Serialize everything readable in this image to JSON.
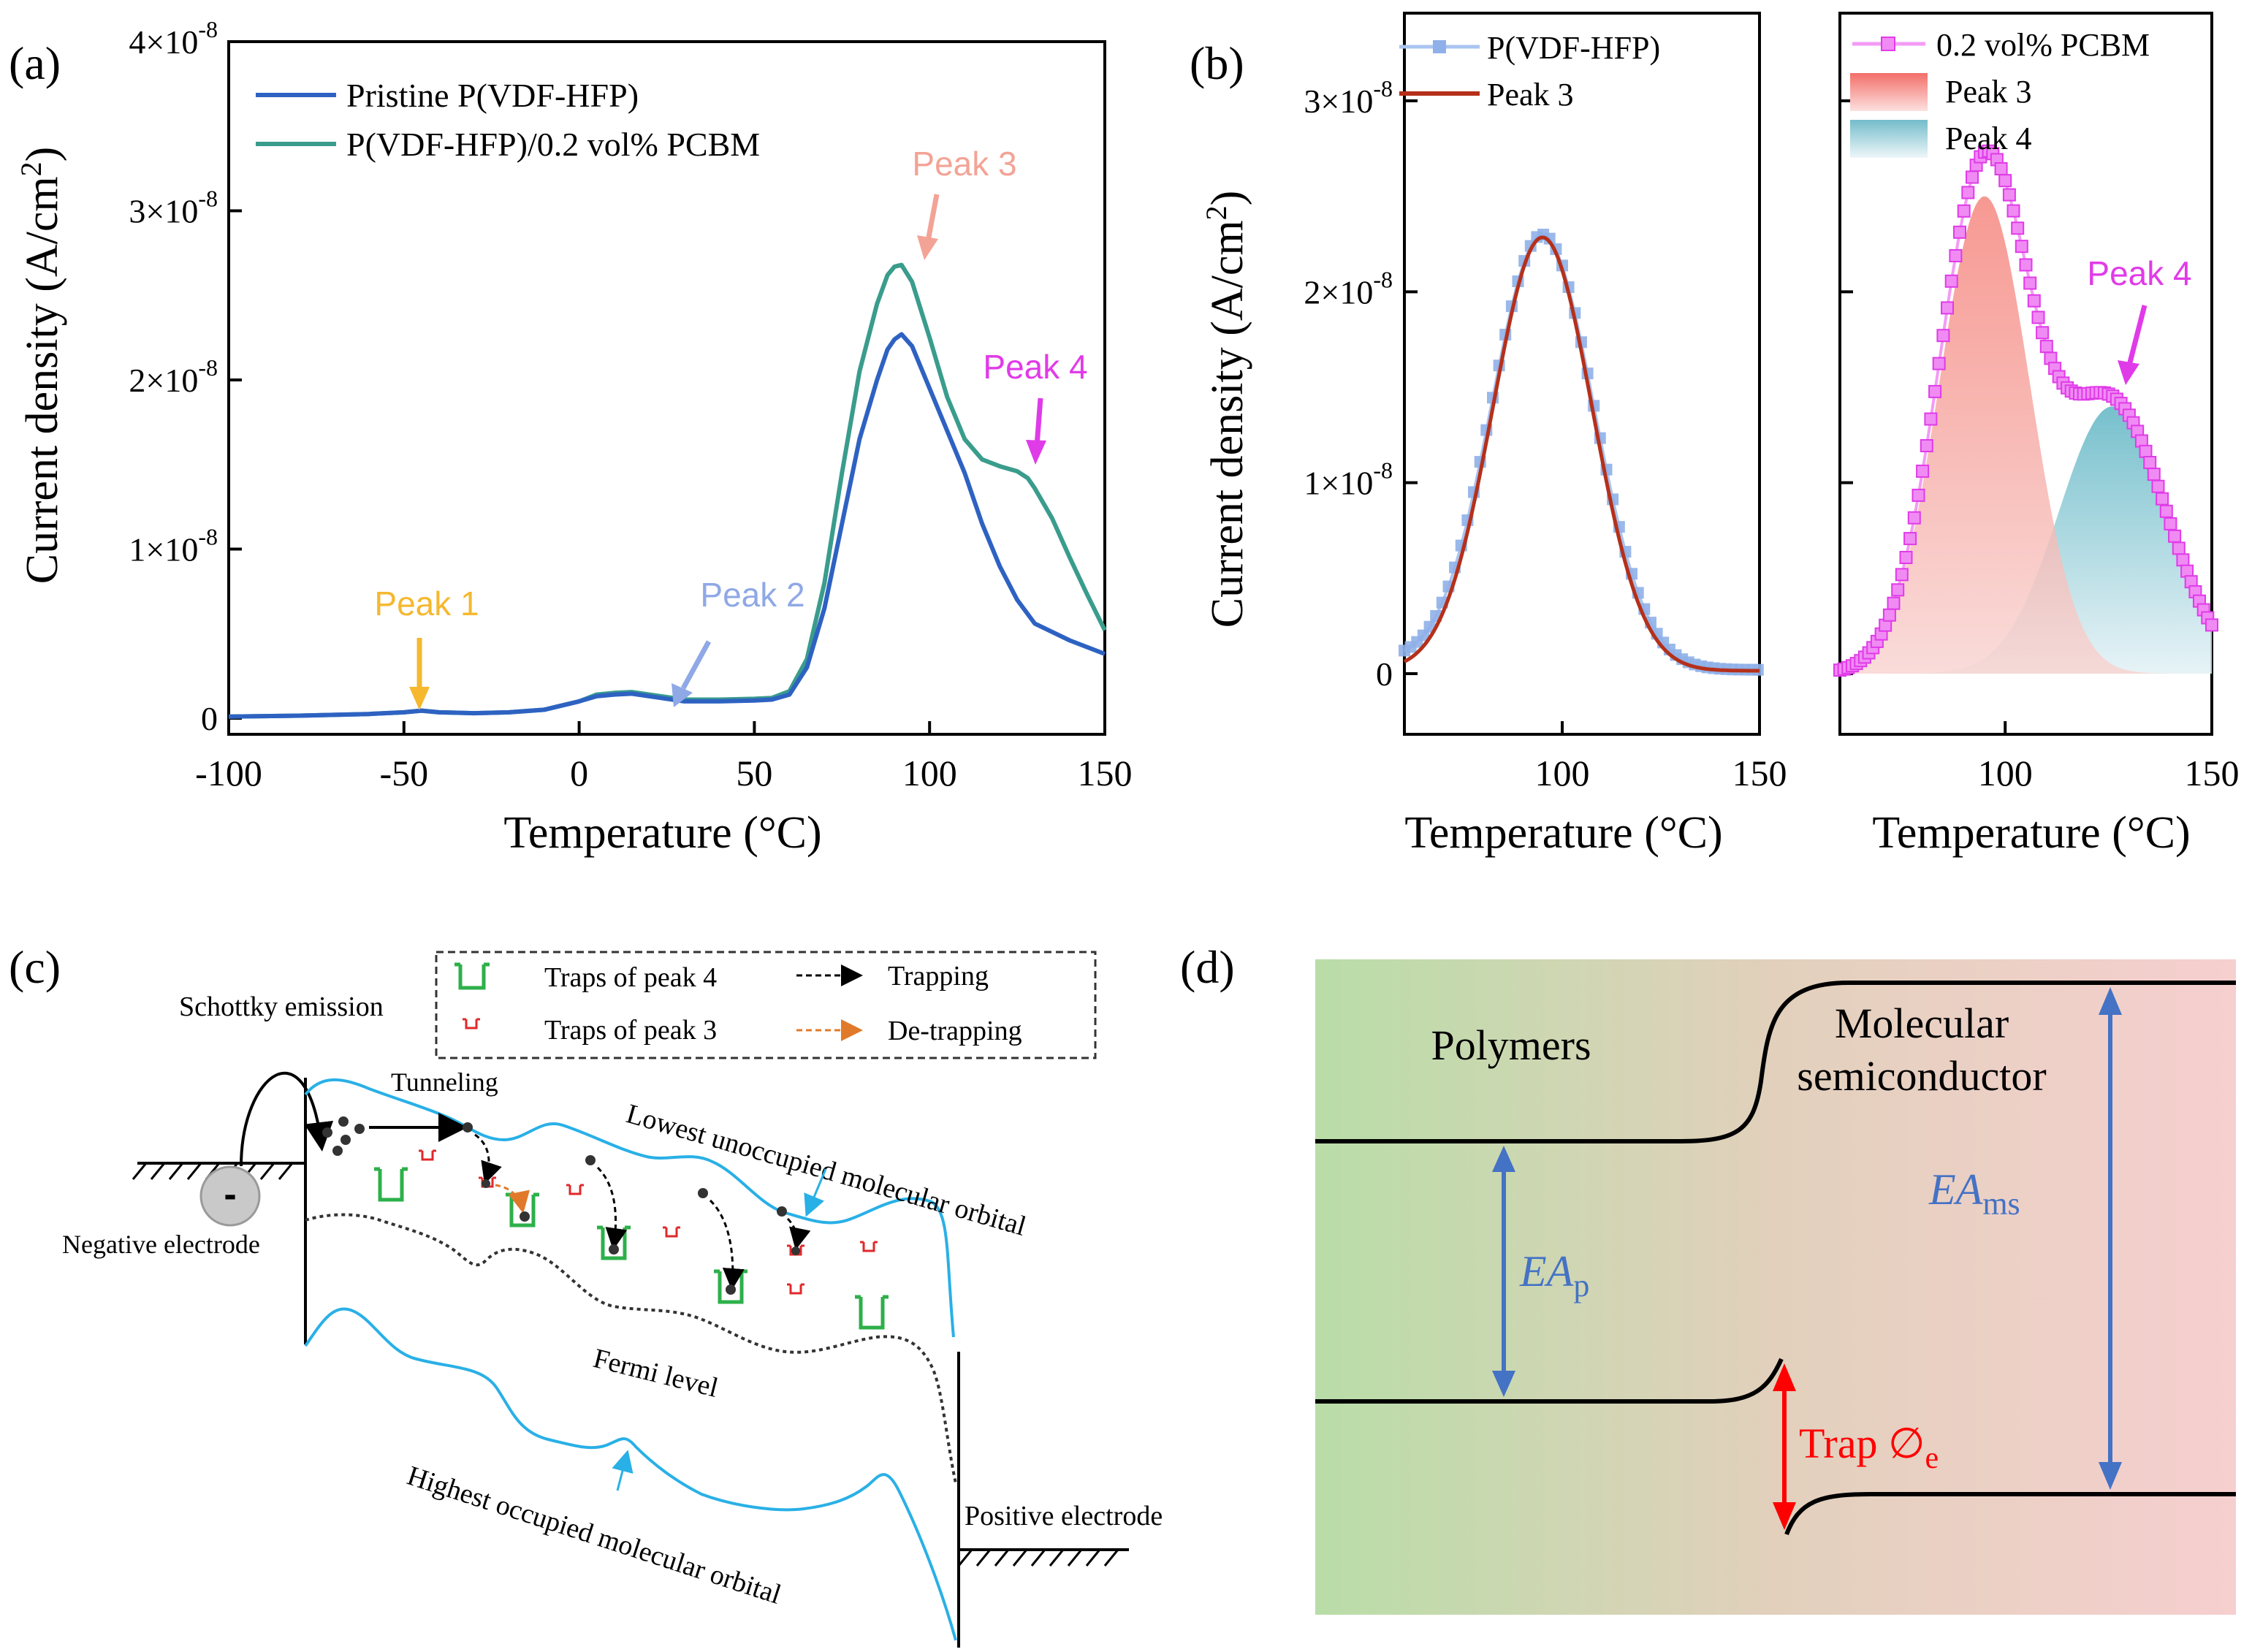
{
  "panel_labels": {
    "a": "(a)",
    "b": "(b)",
    "c": "(c)",
    "d": "(d)"
  },
  "colors": {
    "pristine": "#2E62C2",
    "pcbm": "#3A9C8C",
    "peak1": "#F5B82E",
    "peak2": "#8FA8E6",
    "peak3": "#F3A396",
    "peak4": "#E03BE8",
    "fit_peak3": "#B5301A",
    "band_blue": "#29B0E6",
    "trap_green": "#2DB04A",
    "trap_red": "#E0282A",
    "arrow_blue": "#4472C4",
    "arrow_red": "#FF0000"
  },
  "chart_data": [
    {
      "id": "a",
      "type": "line",
      "xlabel": "Temperature (°C)",
      "ylabel": "Current density (A/cm²)",
      "xlim": [
        -100,
        150
      ],
      "ylim": [
        0,
        4e-08
      ],
      "x_ticks": [
        -100,
        -50,
        0,
        50,
        100,
        150
      ],
      "x_tick_labels": [
        "-100",
        "-50",
        "0",
        "50",
        "100",
        "150"
      ],
      "y_ticks": [
        0,
        1e-08,
        2e-08,
        3e-08,
        4e-08
      ],
      "y_tick_labels": [
        {
          "mant": "0",
          "exp": ""
        },
        {
          "mant": "1×10",
          "exp": "-8"
        },
        {
          "mant": "2×10",
          "exp": "-8"
        },
        {
          "mant": "3×10",
          "exp": "-8"
        },
        {
          "mant": "4×10",
          "exp": "-8"
        }
      ],
      "legend": [
        "Pristine P(VDF-HFP)",
        "P(VDF-HFP)/0.2 vol% PCBM"
      ],
      "legend_position": "top-left",
      "grid": false,
      "series": [
        {
          "name": "Pristine P(VDF-HFP)",
          "x": [
            -100,
            -80,
            -60,
            -50,
            -45,
            -40,
            -30,
            -20,
            -10,
            0,
            5,
            10,
            15,
            20,
            30,
            40,
            50,
            55,
            60,
            65,
            70,
            75,
            80,
            85,
            88,
            90,
            92,
            95,
            100,
            105,
            110,
            115,
            120,
            125,
            130,
            140,
            150
          ],
          "y": [
            1e-10,
            1.5e-10,
            2.5e-10,
            3.5e-10,
            4.5e-10,
            3.5e-10,
            3e-10,
            3.5e-10,
            5e-10,
            1e-09,
            1.3e-09,
            1.4e-09,
            1.45e-09,
            1.3e-09,
            1e-09,
            1e-09,
            1.05e-09,
            1.1e-09,
            1.4e-09,
            3e-09,
            6.5e-09,
            1.15e-08,
            1.65e-08,
            2e-08,
            2.18e-08,
            2.24e-08,
            2.27e-08,
            2.2e-08,
            1.95e-08,
            1.7e-08,
            1.45e-08,
            1.15e-08,
            9e-09,
            7e-09,
            5.6e-09,
            4.6e-09,
            3.8e-09
          ]
        },
        {
          "name": "P(VDF-HFP)/0.2 vol% PCBM",
          "x": [
            -100,
            -80,
            -60,
            -50,
            -45,
            -40,
            -30,
            -20,
            -10,
            0,
            5,
            10,
            15,
            20,
            30,
            40,
            50,
            55,
            60,
            65,
            70,
            75,
            80,
            85,
            88,
            90,
            92,
            95,
            100,
            105,
            110,
            115,
            120,
            125,
            128,
            130,
            135,
            140,
            145,
            150
          ],
          "y": [
            1e-10,
            1.5e-10,
            2.5e-10,
            3.5e-10,
            4.5e-10,
            3.5e-10,
            3e-10,
            3.5e-10,
            5e-10,
            1e-09,
            1.4e-09,
            1.5e-09,
            1.55e-09,
            1.4e-09,
            1.1e-09,
            1.1e-09,
            1.15e-09,
            1.2e-09,
            1.6e-09,
            3.5e-09,
            8e-09,
            1.45e-08,
            2.05e-08,
            2.45e-08,
            2.62e-08,
            2.67e-08,
            2.68e-08,
            2.58e-08,
            2.25e-08,
            1.9e-08,
            1.65e-08,
            1.53e-08,
            1.49e-08,
            1.46e-08,
            1.42e-08,
            1.36e-08,
            1.18e-08,
            9.5e-09,
            7.3e-09,
            5.2e-09
          ]
        }
      ],
      "annotations": [
        {
          "text": "Peak 1",
          "target": [
            -46,
            4.5e-10
          ],
          "color_key": "peak1"
        },
        {
          "text": "Peak 2",
          "target": [
            25,
            1.3e-09
          ],
          "color_key": "peak2"
        },
        {
          "text": "Peak 3",
          "target": [
            93,
            2.7e-08
          ],
          "color_key": "peak3"
        },
        {
          "text": "Peak 4",
          "target": [
            128,
            1.48e-08
          ],
          "color_key": "peak4"
        }
      ]
    },
    {
      "id": "b-left",
      "type": "line",
      "xlabel": "Temperature (°C)",
      "ylabel": "Current density (A/cm²)",
      "xlim": [
        60,
        150
      ],
      "ylim": [
        -3.5e-09,
        3.45e-08
      ],
      "x_ticks": [
        100,
        150
      ],
      "x_tick_labels": [
        "100",
        "150"
      ],
      "y_ticks": [
        0,
        1e-08,
        2e-08,
        3e-08
      ],
      "y_tick_labels": [
        {
          "mant": "0",
          "exp": ""
        },
        {
          "mant": "1×10",
          "exp": "-8"
        },
        {
          "mant": "2×10",
          "exp": "-8"
        },
        {
          "mant": "3×10",
          "exp": "-8"
        }
      ],
      "legend": [
        "P(VDF-HFP)",
        "Peak 3"
      ],
      "legend_position": "top-left",
      "grid": false,
      "series": [
        {
          "name": "P(VDF-HFP)",
          "kind": "markers-line",
          "peak_x": 95,
          "peak_y": 2.28e-08,
          "sigma": 13.0,
          "baseline": 2e-10,
          "x_range": [
            60,
            150
          ],
          "step": 1.6
        },
        {
          "name": "Peak 3",
          "kind": "line",
          "peak_x": 95,
          "peak_y": 2.27e-08,
          "sigma": 12.6,
          "baseline": 1.5e-10,
          "x_range": [
            60,
            150
          ],
          "step": 0.5
        }
      ]
    },
    {
      "id": "b-right",
      "type": "area",
      "xlabel": "Temperature (°C)",
      "xlim": [
        60,
        150
      ],
      "ylim": [
        -3.5e-09,
        3.45e-08
      ],
      "x_ticks": [
        100,
        150
      ],
      "x_tick_labels": [
        "100",
        "150"
      ],
      "legend": [
        "0.2 vol% PCBM",
        "Peak 3",
        "Peak 4"
      ],
      "legend_position": "top-left",
      "grid": false,
      "series": [
        {
          "name": "0.2 vol% PCBM",
          "kind": "markers-line",
          "components": [
            "Peak 3",
            "Peak 4"
          ],
          "x_range": [
            60,
            150
          ],
          "step": 1.0
        },
        {
          "name": "Peak 3",
          "kind": "area",
          "peak_x": 95,
          "peak_y": 2.5e-08,
          "sigma": 11.0,
          "x_range": [
            60,
            150
          ]
        },
        {
          "name": "Peak 4",
          "kind": "area",
          "peak_x": 126,
          "peak_y": 1.4e-08,
          "sigma": 13.0,
          "x_range": [
            60,
            150
          ]
        }
      ],
      "annotations": [
        {
          "text": "Peak 4",
          "target": [
            127,
            1.45e-08
          ],
          "color_key": "peak4"
        }
      ]
    }
  ],
  "diagram_c": {
    "legend": {
      "traps_peak4": "Traps of peak 4",
      "traps_peak3": "Traps of peak 3",
      "trapping": "Trapping",
      "detrapping": "De-trapping"
    },
    "labels": {
      "schottky": "Schottky emission",
      "tunneling": "Tunneling",
      "lumo": "Lowest unoccupied molecular orbital",
      "negative_electrode": "Negative electrode",
      "fermi": "Fermi level",
      "homo": "Highest occupied molecular orbital",
      "positive_electrode": "Positive electrode",
      "electron_sign": "-"
    }
  },
  "diagram_d": {
    "polymers": "Polymers",
    "molecular_line1": "Molecular",
    "molecular_line2": "semiconductor",
    "ea_p_main": "EA",
    "ea_p_sub": "p",
    "ea_ms_main": "EA",
    "ea_ms_sub": "ms",
    "trap_main": "Trap ∅",
    "trap_sub": "e"
  }
}
